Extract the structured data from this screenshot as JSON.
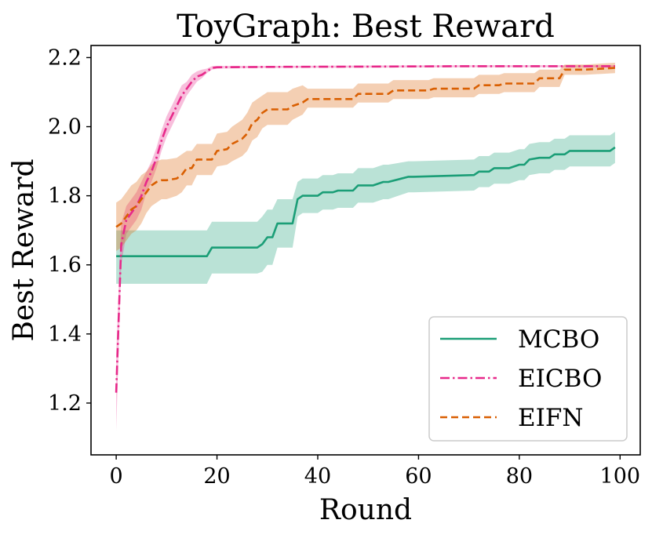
{
  "chart_data": {
    "type": "line",
    "title": "ToyGraph: Best Reward",
    "xlabel": "Round",
    "ylabel": "Best Reward",
    "xlim": [
      -5,
      104
    ],
    "ylim": [
      1.05,
      2.235
    ],
    "xticks": [
      0,
      20,
      40,
      60,
      80,
      100
    ],
    "yticks": [
      1.2,
      1.4,
      1.6,
      1.8,
      2.0,
      2.2
    ],
    "xtick_labels": [
      "0",
      "20",
      "40",
      "60",
      "80",
      "100"
    ],
    "ytick_labels": [
      "1.2",
      "1.4",
      "1.6",
      "1.8",
      "2.0",
      "2.2"
    ],
    "grid": false,
    "legend_position": "bottom-right",
    "series": [
      {
        "name": "MCBO",
        "color": "#1b9e77",
        "style": "solid",
        "x": [
          0,
          18,
          19,
          28,
          29,
          30,
          31,
          32,
          35,
          36,
          37,
          40,
          41,
          43,
          44,
          47,
          48,
          51,
          53,
          54,
          58,
          59,
          71,
          72,
          74,
          75,
          78,
          80,
          81,
          82,
          84,
          86,
          87,
          89,
          90,
          98,
          99
        ],
        "y": [
          1.625,
          1.625,
          1.65,
          1.65,
          1.66,
          1.68,
          1.68,
          1.72,
          1.72,
          1.79,
          1.8,
          1.8,
          1.81,
          1.81,
          1.815,
          1.815,
          1.83,
          1.83,
          1.84,
          1.84,
          1.855,
          1.855,
          1.86,
          1.87,
          1.87,
          1.88,
          1.88,
          1.89,
          1.89,
          1.905,
          1.91,
          1.91,
          1.92,
          1.92,
          1.93,
          1.93,
          1.94
        ],
        "lower": [
          1.545,
          1.545,
          1.575,
          1.575,
          1.58,
          1.6,
          1.6,
          1.65,
          1.65,
          1.74,
          1.75,
          1.75,
          1.76,
          1.76,
          1.765,
          1.765,
          1.78,
          1.78,
          1.79,
          1.79,
          1.81,
          1.81,
          1.815,
          1.825,
          1.825,
          1.835,
          1.835,
          1.845,
          1.845,
          1.86,
          1.865,
          1.865,
          1.875,
          1.875,
          1.885,
          1.885,
          1.895
        ],
        "upper": [
          1.7,
          1.7,
          1.725,
          1.725,
          1.74,
          1.76,
          1.76,
          1.79,
          1.79,
          1.84,
          1.85,
          1.85,
          1.86,
          1.86,
          1.865,
          1.865,
          1.88,
          1.88,
          1.89,
          1.89,
          1.9,
          1.9,
          1.905,
          1.915,
          1.915,
          1.925,
          1.925,
          1.935,
          1.935,
          1.95,
          1.955,
          1.955,
          1.965,
          1.965,
          1.975,
          1.975,
          1.985
        ]
      },
      {
        "name": "EICBO",
        "color": "#e7298a",
        "style": "dashdot",
        "x": [
          0,
          1,
          2,
          3,
          4,
          5,
          6,
          7,
          8,
          9,
          10,
          11,
          12,
          13,
          14,
          15,
          16,
          17,
          18,
          19,
          20,
          30,
          50,
          70,
          99
        ],
        "y": [
          1.23,
          1.66,
          1.73,
          1.75,
          1.77,
          1.8,
          1.84,
          1.87,
          1.91,
          1.96,
          2.0,
          2.03,
          2.06,
          2.09,
          2.11,
          2.13,
          2.145,
          2.15,
          2.16,
          2.17,
          2.172,
          2.173,
          2.174,
          2.175,
          2.175
        ],
        "lower": [
          1.12,
          1.6,
          1.69,
          1.71,
          1.73,
          1.76,
          1.81,
          1.84,
          1.88,
          1.93,
          1.97,
          2.0,
          2.03,
          2.06,
          2.09,
          2.11,
          2.13,
          2.14,
          2.155,
          2.165,
          2.168,
          2.17,
          2.171,
          2.172,
          2.172
        ],
        "upper": [
          1.34,
          1.72,
          1.77,
          1.79,
          1.81,
          1.84,
          1.87,
          1.9,
          1.94,
          1.99,
          2.03,
          2.06,
          2.09,
          2.12,
          2.13,
          2.15,
          2.16,
          2.165,
          2.168,
          2.175,
          2.176,
          2.176,
          2.177,
          2.178,
          2.178
        ]
      },
      {
        "name": "EIFN",
        "color": "#d95f02",
        "style": "dashed",
        "x": [
          0,
          1,
          2,
          3,
          4,
          5,
          6,
          7,
          8,
          9,
          10,
          12,
          13,
          14,
          15,
          16,
          17,
          19,
          20,
          22,
          23,
          25,
          26,
          27,
          28,
          29,
          30,
          34,
          35,
          37,
          38,
          43,
          47,
          48,
          54,
          55,
          62,
          63,
          71,
          72,
          76,
          77,
          83,
          84,
          88,
          89,
          93,
          99
        ],
        "y": [
          1.71,
          1.72,
          1.74,
          1.76,
          1.77,
          1.79,
          1.81,
          1.83,
          1.84,
          1.845,
          1.845,
          1.85,
          1.86,
          1.88,
          1.88,
          1.905,
          1.905,
          1.905,
          1.93,
          1.935,
          1.95,
          1.965,
          1.98,
          2.01,
          2.02,
          2.04,
          2.05,
          2.05,
          2.06,
          2.07,
          2.08,
          2.08,
          2.08,
          2.095,
          2.095,
          2.105,
          2.105,
          2.11,
          2.11,
          2.12,
          2.12,
          2.125,
          2.125,
          2.14,
          2.14,
          2.165,
          2.165,
          2.17
        ],
        "lower": [
          1.64,
          1.65,
          1.67,
          1.69,
          1.7,
          1.72,
          1.75,
          1.77,
          1.78,
          1.79,
          1.79,
          1.8,
          1.81,
          1.83,
          1.83,
          1.86,
          1.86,
          1.86,
          1.885,
          1.89,
          1.9,
          1.915,
          1.93,
          1.96,
          1.97,
          1.995,
          2.005,
          2.005,
          2.02,
          2.035,
          2.055,
          2.055,
          2.055,
          2.07,
          2.07,
          2.08,
          2.08,
          2.085,
          2.085,
          2.095,
          2.095,
          2.1,
          2.1,
          2.115,
          2.115,
          2.15,
          2.15,
          2.155
        ],
        "upper": [
          1.78,
          1.79,
          1.81,
          1.83,
          1.84,
          1.86,
          1.87,
          1.89,
          1.9,
          1.905,
          1.905,
          1.91,
          1.92,
          1.93,
          1.93,
          1.95,
          1.95,
          1.95,
          1.98,
          1.985,
          2.0,
          2.02,
          2.04,
          2.07,
          2.08,
          2.09,
          2.1,
          2.1,
          2.11,
          2.12,
          2.11,
          2.11,
          2.11,
          2.125,
          2.125,
          2.135,
          2.135,
          2.14,
          2.14,
          2.15,
          2.15,
          2.155,
          2.155,
          2.165,
          2.165,
          2.18,
          2.18,
          2.185
        ]
      }
    ]
  }
}
